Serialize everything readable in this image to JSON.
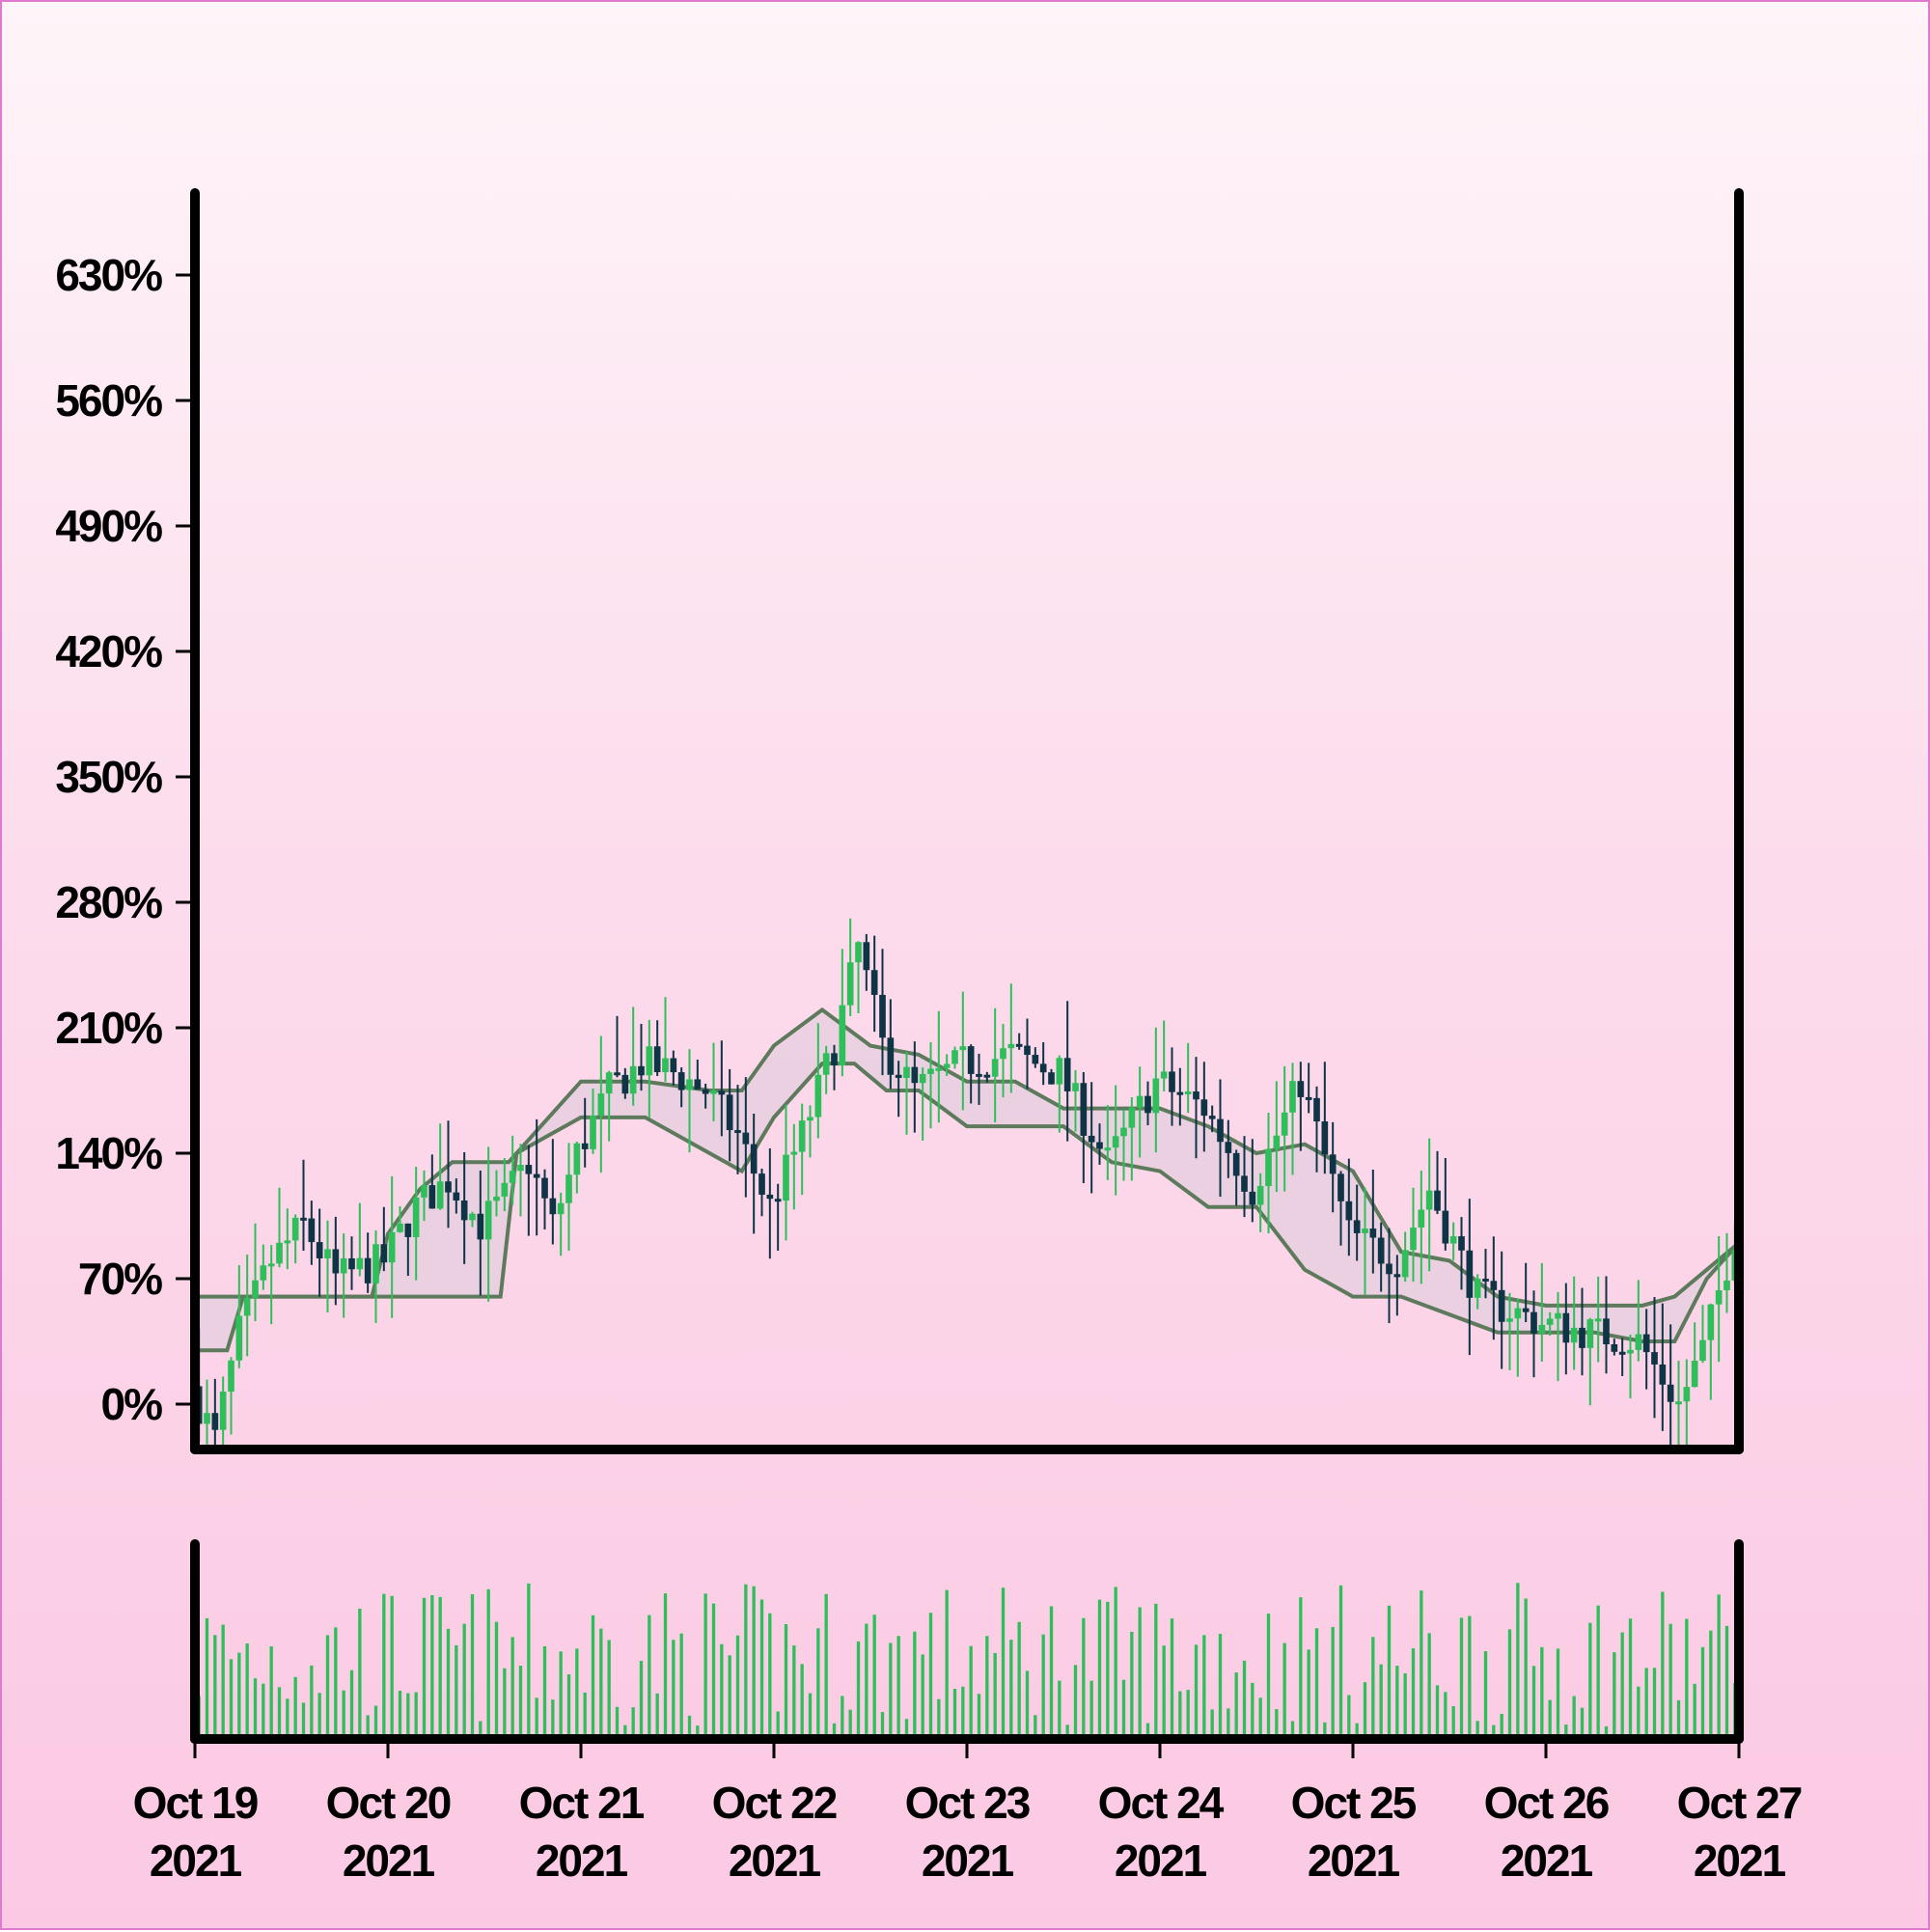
{
  "chart_data": {
    "type": "candlestick",
    "series_type": "ohlc-percent-change",
    "y_unit": "%",
    "x_start": "2021-10-19",
    "x_end": "2021-10-27",
    "ylim": [
      -6,
      700
    ],
    "yticks": [
      0,
      70,
      140,
      210,
      280,
      350,
      420,
      490,
      560,
      630
    ],
    "ytick_labels": [
      "0%",
      "70%",
      "140%",
      "210%",
      "280%",
      "350%",
      "420%",
      "490%",
      "560%",
      "630%"
    ],
    "xticks": [
      {
        "date": "2021-10-19",
        "line1": "Oct 19",
        "line2": "2021"
      },
      {
        "date": "2021-10-20",
        "line1": "Oct 20",
        "line2": "2021"
      },
      {
        "date": "2021-10-21",
        "line1": "Oct 21",
        "line2": "2021"
      },
      {
        "date": "2021-10-22",
        "line1": "Oct 22",
        "line2": "2021"
      },
      {
        "date": "2021-10-23",
        "line1": "Oct 23",
        "line2": "2021"
      },
      {
        "date": "2021-10-24",
        "line1": "Oct 24",
        "line2": "2021"
      },
      {
        "date": "2021-10-25",
        "line1": "Oct 25",
        "line2": "2021"
      },
      {
        "date": "2021-10-26",
        "line1": "Oct 26",
        "line2": "2021"
      },
      {
        "date": "2021-10-27",
        "line1": "Oct 27",
        "line2": "2021"
      }
    ],
    "close_trend": [
      [
        "2021-10-19T00:00",
        10
      ],
      [
        "2021-10-19T03:00",
        -20
      ],
      [
        "2021-10-19T06:00",
        40
      ],
      [
        "2021-10-19T10:00",
        80
      ],
      [
        "2021-10-19T14:00",
        100
      ],
      [
        "2021-10-19T18:00",
        70
      ],
      [
        "2021-10-20T00:00",
        80
      ],
      [
        "2021-10-20T04:00",
        110
      ],
      [
        "2021-10-20T08:00",
        125
      ],
      [
        "2021-10-20T12:00",
        100
      ],
      [
        "2021-10-20T15:00",
        115
      ],
      [
        "2021-10-20T18:00",
        135
      ],
      [
        "2021-10-20T21:00",
        100
      ],
      [
        "2021-10-21T00:00",
        140
      ],
      [
        "2021-10-21T04:00",
        175
      ],
      [
        "2021-10-21T08:00",
        190
      ],
      [
        "2021-10-21T12:00",
        185
      ],
      [
        "2021-10-21T16:00",
        175
      ],
      [
        "2021-10-21T20:00",
        150
      ],
      [
        "2021-10-22T00:00",
        110
      ],
      [
        "2021-10-22T04:00",
        150
      ],
      [
        "2021-10-22T08:00",
        200
      ],
      [
        "2021-10-22T11:00",
        255
      ],
      [
        "2021-10-22T14:00",
        200
      ],
      [
        "2021-10-22T18:00",
        175
      ],
      [
        "2021-10-23T00:00",
        190
      ],
      [
        "2021-10-23T06:00",
        195
      ],
      [
        "2021-10-23T12:00",
        185
      ],
      [
        "2021-10-23T18:00",
        135
      ],
      [
        "2021-10-24T00:00",
        180
      ],
      [
        "2021-10-24T06:00",
        165
      ],
      [
        "2021-10-24T12:00",
        120
      ],
      [
        "2021-10-24T18:00",
        180
      ],
      [
        "2021-10-25T00:00",
        95
      ],
      [
        "2021-10-25T06:00",
        80
      ],
      [
        "2021-10-25T10:00",
        120
      ],
      [
        "2021-10-25T16:00",
        60
      ],
      [
        "2021-10-26T00:00",
        45
      ],
      [
        "2021-10-26T06:00",
        40
      ],
      [
        "2021-10-26T12:00",
        35
      ],
      [
        "2021-10-26T17:00",
        0
      ],
      [
        "2021-10-26T20:00",
        30
      ],
      [
        "2021-10-27T00:00",
        95
      ]
    ],
    "channel_upper": [
      [
        "2021-10-19T00:00",
        60
      ],
      [
        "2021-10-19T22:00",
        60
      ],
      [
        "2021-10-20T00:00",
        95
      ],
      [
        "2021-10-20T04:00",
        120
      ],
      [
        "2021-10-20T08:00",
        135
      ],
      [
        "2021-10-20T15:00",
        135
      ],
      [
        "2021-10-20T18:00",
        150
      ],
      [
        "2021-10-21T00:00",
        180
      ],
      [
        "2021-10-21T08:00",
        180
      ],
      [
        "2021-10-21T16:00",
        175
      ],
      [
        "2021-10-21T20:00",
        175
      ],
      [
        "2021-10-22T00:00",
        200
      ],
      [
        "2021-10-22T06:00",
        220
      ],
      [
        "2021-10-22T12:00",
        200
      ],
      [
        "2021-10-22T18:00",
        195
      ],
      [
        "2021-10-23T00:00",
        180
      ],
      [
        "2021-10-23T06:00",
        180
      ],
      [
        "2021-10-23T12:00",
        165
      ],
      [
        "2021-10-23T18:00",
        165
      ],
      [
        "2021-10-24T00:00",
        165
      ],
      [
        "2021-10-24T06:00",
        155
      ],
      [
        "2021-10-24T12:00",
        140
      ],
      [
        "2021-10-24T18:00",
        145
      ],
      [
        "2021-10-25T00:00",
        130
      ],
      [
        "2021-10-25T06:00",
        85
      ],
      [
        "2021-10-25T12:00",
        80
      ],
      [
        "2021-10-25T18:00",
        60
      ],
      [
        "2021-10-26T00:00",
        55
      ],
      [
        "2021-10-26T06:00",
        55
      ],
      [
        "2021-10-26T12:00",
        55
      ],
      [
        "2021-10-26T16:00",
        60
      ],
      [
        "2021-10-26T20:00",
        75
      ],
      [
        "2021-10-27T00:00",
        90
      ]
    ],
    "channel_lower": [
      [
        "2021-10-19T00:00",
        30
      ],
      [
        "2021-10-19T04:00",
        30
      ],
      [
        "2021-10-19T06:00",
        60
      ],
      [
        "2021-10-19T10:00",
        60
      ],
      [
        "2021-10-19T22:00",
        60
      ],
      [
        "2021-10-20T12:00",
        60
      ],
      [
        "2021-10-20T14:00",
        60
      ],
      [
        "2021-10-20T16:00",
        140
      ],
      [
        "2021-10-21T00:00",
        160
      ],
      [
        "2021-10-21T08:00",
        160
      ],
      [
        "2021-10-21T16:00",
        140
      ],
      [
        "2021-10-21T20:00",
        130
      ],
      [
        "2021-10-22T00:00",
        160
      ],
      [
        "2021-10-22T06:00",
        190
      ],
      [
        "2021-10-22T10:00",
        190
      ],
      [
        "2021-10-22T14:00",
        175
      ],
      [
        "2021-10-22T18:00",
        175
      ],
      [
        "2021-10-23T00:00",
        155
      ],
      [
        "2021-10-23T06:00",
        155
      ],
      [
        "2021-10-23T12:00",
        155
      ],
      [
        "2021-10-23T18:00",
        135
      ],
      [
        "2021-10-24T00:00",
        130
      ],
      [
        "2021-10-24T06:00",
        110
      ],
      [
        "2021-10-24T12:00",
        110
      ],
      [
        "2021-10-24T18:00",
        75
      ],
      [
        "2021-10-25T00:00",
        60
      ],
      [
        "2021-10-25T06:00",
        60
      ],
      [
        "2021-10-25T12:00",
        50
      ],
      [
        "2021-10-25T18:00",
        40
      ],
      [
        "2021-10-26T00:00",
        40
      ],
      [
        "2021-10-26T06:00",
        40
      ],
      [
        "2021-10-26T12:00",
        35
      ],
      [
        "2021-10-26T16:00",
        35
      ],
      [
        "2021-10-26T20:00",
        70
      ],
      [
        "2021-10-27T00:00",
        90
      ]
    ],
    "volume_panel": {
      "shown": true,
      "color": "#2fbf5a"
    },
    "colors": {
      "up": "#2fbf5a",
      "down": "#0f3446",
      "channel_line": "#5e7a5c",
      "channel_fill": "#e8cfe0",
      "axis": "#000000"
    },
    "legend": "none",
    "grid": false
  }
}
